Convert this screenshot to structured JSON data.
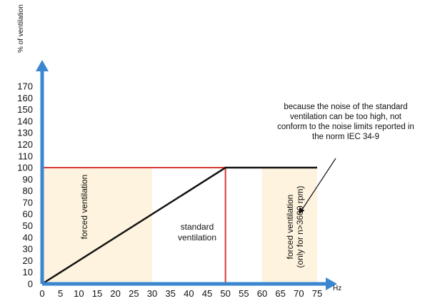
{
  "colors": {
    "axis": "#3a86d0",
    "limit_line": "#d7382f",
    "curve": "#111111",
    "zone_fill": "#fdf3de",
    "text": "#111111"
  },
  "chart_data": {
    "type": "line",
    "title": "",
    "xlabel": "Hz",
    "ylabel": "% of ventilation",
    "xlim": [
      0,
      75
    ],
    "ylim": [
      0,
      170
    ],
    "x_ticks": [
      0,
      5,
      10,
      15,
      20,
      25,
      30,
      35,
      40,
      45,
      50,
      55,
      60,
      65,
      70,
      75
    ],
    "y_ticks": [
      0,
      10,
      20,
      30,
      40,
      50,
      60,
      70,
      80,
      90,
      100,
      110,
      120,
      130,
      140,
      150,
      160,
      170
    ],
    "grid": false,
    "series": [
      {
        "role": "ventilation",
        "x": [
          0,
          50,
          75
        ],
        "y": [
          0,
          100,
          100
        ]
      },
      {
        "role": "limit-horizontal",
        "x": [
          0,
          50
        ],
        "y": [
          100,
          100
        ]
      },
      {
        "role": "limit-vertical",
        "x": [
          50,
          50
        ],
        "y": [
          0,
          100
        ]
      }
    ],
    "regions": [
      {
        "x_range": [
          0,
          30
        ],
        "y_range": [
          0,
          100
        ],
        "label": "forced  ventilation",
        "orientation": "vertical"
      },
      {
        "x_range": [
          60,
          75
        ],
        "y_range": [
          0,
          100
        ],
        "label": "forced ventilation",
        "label2": "(only for n>3600 rpm)",
        "orientation": "vertical"
      }
    ],
    "annotations": {
      "standard_line1": "standard",
      "standard_line2": "ventilation",
      "note_lines": [
        "because the noise of the standard",
        "ventilation can be too high, not",
        "conform to the noise limits reported in",
        "the norm IEC 34-9"
      ],
      "arrow_target": {
        "x": 70,
        "y": 60
      }
    }
  }
}
